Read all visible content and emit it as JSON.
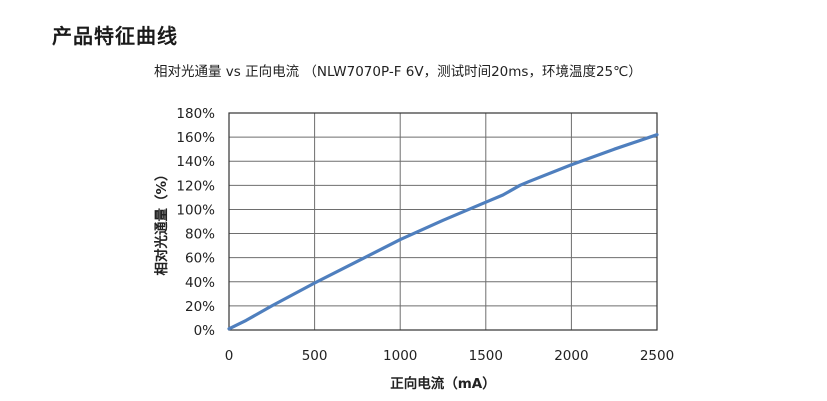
{
  "header": {
    "title": "产品特征曲线"
  },
  "chart_data": {
    "type": "line",
    "title": "相对光通量 vs 正向电流 （NLW7070P-F 6V，测试时间20ms，环境温度25℃）",
    "xlabel": "正向电流（mA）",
    "ylabel": "相对光通量（%）",
    "xlim": [
      0,
      2500
    ],
    "ylim": [
      0,
      180
    ],
    "x_ticks": [
      0,
      500,
      1000,
      1500,
      2000,
      2500
    ],
    "y_ticks": [
      0,
      20,
      40,
      60,
      80,
      100,
      120,
      140,
      160,
      180
    ],
    "y_tick_labels": [
      "0%",
      "20%",
      "40%",
      "60%",
      "80%",
      "100%",
      "120%",
      "140%",
      "160%",
      "180%"
    ],
    "grid": true,
    "series": [
      {
        "color": "#4f7fbe",
        "x": [
          0,
          100,
          250,
          500,
          750,
          1000,
          1250,
          1500,
          1600,
          1700,
          1750,
          2000,
          2250,
          2500
        ],
        "y": [
          1,
          8,
          20,
          39,
          57,
          75,
          91,
          106,
          112,
          120,
          123,
          137,
          150,
          162
        ]
      }
    ]
  }
}
